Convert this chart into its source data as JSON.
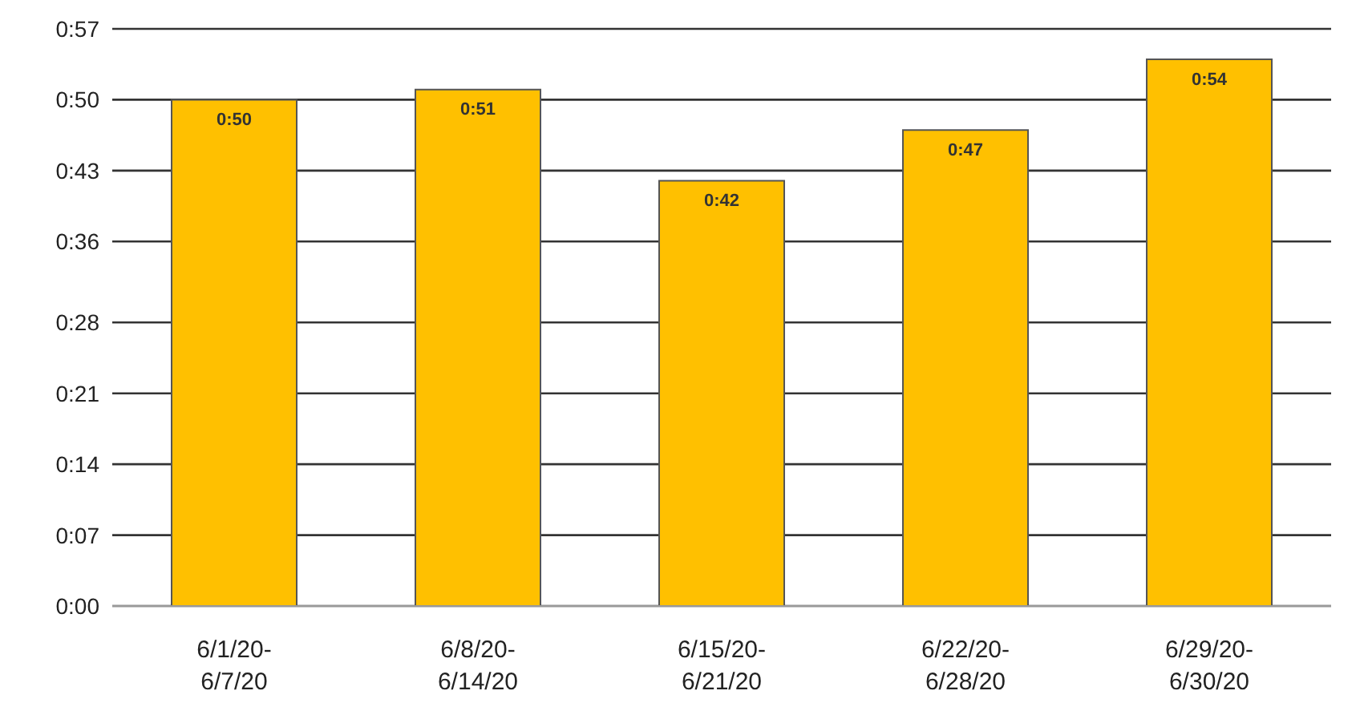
{
  "chart_data": {
    "type": "bar",
    "categories": [
      "6/1/20-6/7/20",
      "6/8/20-6/14/20",
      "6/15/20-6/21/20",
      "6/22/20-6/28/20",
      "6/29/20-6/30/20"
    ],
    "values": [
      50,
      51,
      42,
      47,
      54
    ],
    "value_labels": [
      "0:50",
      "0:51",
      "0:42",
      "0:47",
      "0:54"
    ],
    "color": "#ffc000",
    "ylim": [
      0,
      57
    ],
    "yticks": [
      {
        "value": 0,
        "label": "0:00"
      },
      {
        "value": 7,
        "label": "0:07"
      },
      {
        "value": 14,
        "label": "0:14"
      },
      {
        "value": 21,
        "label": "0:21"
      },
      {
        "value": 28,
        "label": "0:28"
      },
      {
        "value": 36,
        "label": "0:36"
      },
      {
        "value": 43,
        "label": "0:43"
      },
      {
        "value": 50,
        "label": "0:50"
      },
      {
        "value": 57,
        "label": "0:57"
      }
    ],
    "grid": "y",
    "legend": false
  }
}
